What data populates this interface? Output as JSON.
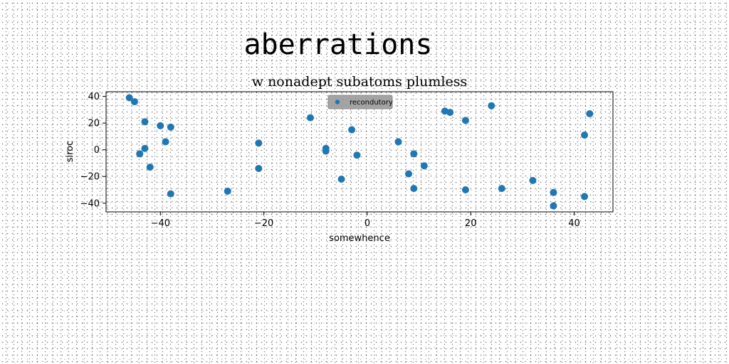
{
  "page": {
    "title": "aberrations"
  },
  "chart_data": {
    "type": "scatter",
    "title": "w nonadept subatoms plumless",
    "xlabel": "somewhence",
    "ylabel": "siroc",
    "xlim": [
      -50.5,
      47.5
    ],
    "ylim": [
      -46.5,
      43.5
    ],
    "xticks": [
      -40,
      -20,
      0,
      20,
      40
    ],
    "yticks": [
      -40,
      -20,
      0,
      20,
      40
    ],
    "grid": false,
    "legend_position": "top-center",
    "series": [
      {
        "name": "recondutory",
        "color": "#1f77b4",
        "points": [
          {
            "x": -46,
            "y": 39
          },
          {
            "x": -45,
            "y": 36
          },
          {
            "x": -43,
            "y": 21
          },
          {
            "x": -44,
            "y": -3
          },
          {
            "x": -43,
            "y": 1
          },
          {
            "x": -42,
            "y": -13
          },
          {
            "x": -40,
            "y": 18
          },
          {
            "x": -39,
            "y": 6
          },
          {
            "x": -38,
            "y": 17
          },
          {
            "x": -38,
            "y": -33
          },
          {
            "x": -27,
            "y": -31
          },
          {
            "x": -21,
            "y": 5
          },
          {
            "x": -21,
            "y": -14
          },
          {
            "x": -11,
            "y": 24
          },
          {
            "x": -8,
            "y": 1
          },
          {
            "x": -8,
            "y": -1
          },
          {
            "x": -5,
            "y": -22
          },
          {
            "x": -3,
            "y": 15
          },
          {
            "x": -2,
            "y": -4
          },
          {
            "x": 6,
            "y": 6
          },
          {
            "x": 8,
            "y": -18
          },
          {
            "x": 9,
            "y": -3
          },
          {
            "x": 9,
            "y": -29
          },
          {
            "x": 11,
            "y": -12
          },
          {
            "x": 15,
            "y": 29
          },
          {
            "x": 16,
            "y": 28
          },
          {
            "x": 19,
            "y": 22
          },
          {
            "x": 19,
            "y": -30
          },
          {
            "x": 24,
            "y": 33
          },
          {
            "x": 26,
            "y": -29
          },
          {
            "x": 32,
            "y": -23
          },
          {
            "x": 36,
            "y": -32
          },
          {
            "x": 36,
            "y": -42
          },
          {
            "x": 42,
            "y": 11
          },
          {
            "x": 42,
            "y": -35
          },
          {
            "x": 43,
            "y": 27
          }
        ]
      }
    ]
  }
}
